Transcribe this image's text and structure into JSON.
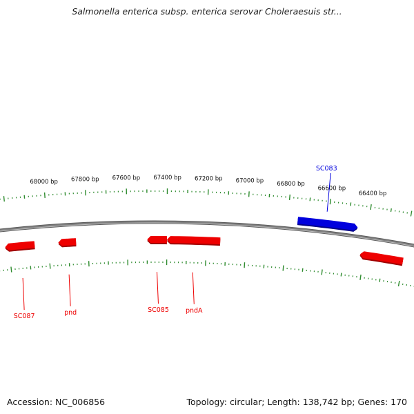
{
  "title": "Salmonella enterica subsp. enterica serovar Choleraesuis str...",
  "footer": {
    "accession": "Accession: NC_006856",
    "summary": "Topology: circular; Length: 138,742 bp; Genes: 170"
  },
  "colors": {
    "forward": "#0000dd",
    "reverse": "#ee0000",
    "tick": "#2e8b2e",
    "backbone": "#808080"
  },
  "scale_labels": [
    {
      "bp": 68000,
      "text": "68000 bp"
    },
    {
      "bp": 67800,
      "text": "67800 bp"
    },
    {
      "bp": 67600,
      "text": "67600 bp"
    },
    {
      "bp": 67400,
      "text": "67400 bp"
    },
    {
      "bp": 67200,
      "text": "67200 bp"
    },
    {
      "bp": 67000,
      "text": "67000 bp"
    },
    {
      "bp": 66800,
      "text": "66800 bp"
    },
    {
      "bp": 66600,
      "text": "66600 bp"
    },
    {
      "bp": 66400,
      "text": "66400 bp"
    }
  ],
  "genes": [
    {
      "name": "SC083",
      "strand": "forward",
      "start_bp": 66450,
      "end_bp": 66750,
      "labeled": true
    },
    {
      "name": "",
      "strand": "reverse",
      "start_bp": 66200,
      "end_bp": 66420,
      "labeled": false
    },
    {
      "name": "pndA",
      "strand": "reverse",
      "start_bp": 67130,
      "end_bp": 67400,
      "labeled": true
    },
    {
      "name": "SC085",
      "strand": "reverse",
      "start_bp": 67400,
      "end_bp": 67500,
      "labeled": true
    },
    {
      "name": "pnd",
      "strand": "reverse",
      "start_bp": 67860,
      "end_bp": 67950,
      "labeled": true
    },
    {
      "name": "SC087",
      "strand": "reverse",
      "start_bp": 68070,
      "end_bp": 68220,
      "labeled": true
    }
  ]
}
